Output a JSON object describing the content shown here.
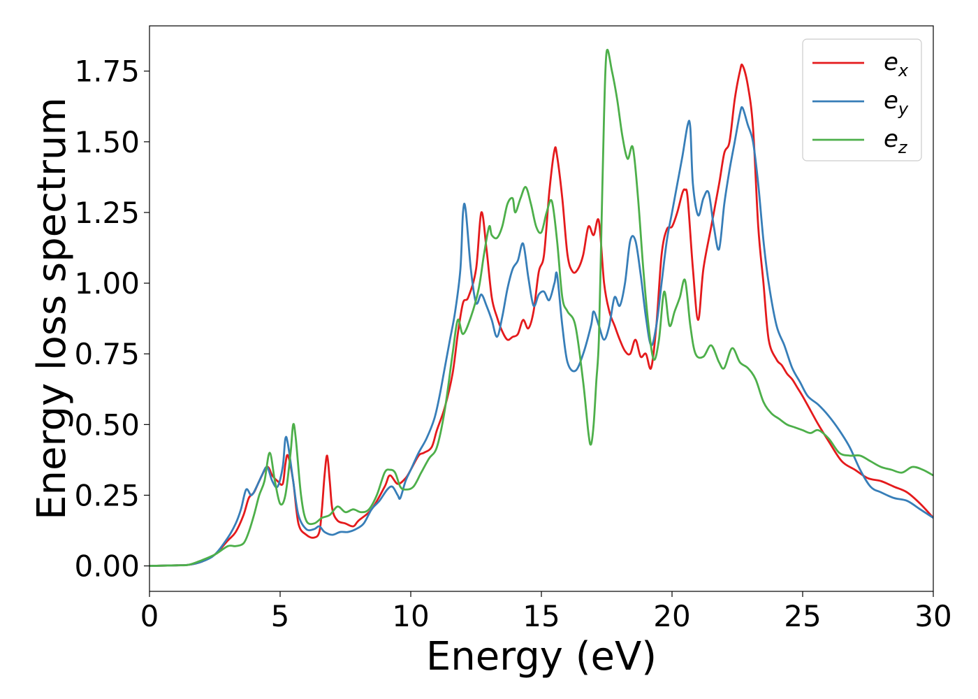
{
  "chart_data": {
    "type": "line",
    "title": "",
    "xlabel": "Energy (eV)",
    "ylabel": "Energy loss spectrum",
    "xlim": [
      0,
      30
    ],
    "ylim": [
      -0.09,
      1.91
    ],
    "xticks": [
      0,
      5,
      10,
      15,
      20,
      25,
      30
    ],
    "xtick_labels": [
      "0",
      "5",
      "10",
      "15",
      "20",
      "25",
      "30"
    ],
    "yticks": [
      0,
      0.25,
      0.5,
      0.75,
      1.0,
      1.25,
      1.5,
      1.75
    ],
    "ytick_labels": [
      "0.00",
      "0.25",
      "0.50",
      "0.75",
      "1.00",
      "1.25",
      "1.50",
      "1.75"
    ],
    "grid": false,
    "legend_position": "top-right",
    "series": [
      {
        "name": "e_x",
        "label_base": "e",
        "label_sub": "x",
        "color": "#e41a1c",
        "x": [
          0,
          1,
          1.5,
          2,
          2.5,
          3,
          3.3,
          3.6,
          3.8,
          4.0,
          4.2,
          4.5,
          4.7,
          4.9,
          5.1,
          5.2,
          5.3,
          5.5,
          5.7,
          6.0,
          6.3,
          6.5,
          6.6,
          6.7,
          6.8,
          6.9,
          7.0,
          7.2,
          7.5,
          7.8,
          8.0,
          8.5,
          9.0,
          9.2,
          9.5,
          9.8,
          10,
          10.3,
          10.5,
          10.8,
          11.0,
          11.3,
          11.6,
          11.8,
          12.0,
          12.2,
          12.5,
          12.7,
          12.9,
          13.1,
          13.3,
          13.5,
          13.7,
          13.9,
          14.1,
          14.3,
          14.5,
          14.7,
          14.9,
          15.1,
          15.3,
          15.5,
          15.6,
          15.8,
          16.0,
          16.2,
          16.4,
          16.6,
          16.8,
          17.0,
          17.2,
          17.4,
          17.6,
          17.8,
          18.0,
          18.2,
          18.4,
          18.6,
          18.8,
          19.0,
          19.2,
          19.4,
          19.6,
          19.8,
          20.0,
          20.2,
          20.4,
          20.5,
          20.6,
          20.8,
          21.0,
          21.2,
          21.5,
          21.8,
          22.0,
          22.2,
          22.4,
          22.6,
          22.7,
          22.9,
          23.1,
          23.3,
          23.5,
          23.7,
          24.0,
          24.2,
          24.4,
          24.6,
          24.8,
          25.0,
          25.3,
          25.6,
          26.0,
          26.5,
          27.0,
          27.5,
          28.0,
          28.5,
          29.0,
          29.5,
          30.0
        ],
        "y": [
          0,
          0.002,
          0.004,
          0.015,
          0.04,
          0.09,
          0.12,
          0.18,
          0.24,
          0.26,
          0.3,
          0.35,
          0.32,
          0.3,
          0.29,
          0.36,
          0.39,
          0.3,
          0.15,
          0.11,
          0.1,
          0.12,
          0.2,
          0.32,
          0.39,
          0.3,
          0.2,
          0.16,
          0.15,
          0.14,
          0.16,
          0.2,
          0.28,
          0.32,
          0.29,
          0.31,
          0.34,
          0.39,
          0.4,
          0.42,
          0.48,
          0.56,
          0.68,
          0.82,
          0.93,
          0.95,
          1.05,
          1.25,
          1.12,
          0.95,
          0.88,
          0.83,
          0.8,
          0.81,
          0.82,
          0.87,
          0.84,
          0.9,
          1.04,
          1.1,
          1.32,
          1.47,
          1.45,
          1.3,
          1.1,
          1.04,
          1.05,
          1.1,
          1.2,
          1.17,
          1.22,
          1.0,
          0.9,
          0.85,
          0.8,
          0.76,
          0.75,
          0.8,
          0.74,
          0.75,
          0.7,
          0.85,
          1.1,
          1.19,
          1.2,
          1.25,
          1.32,
          1.33,
          1.3,
          1.05,
          0.87,
          1.05,
          1.2,
          1.35,
          1.46,
          1.5,
          1.65,
          1.75,
          1.77,
          1.7,
          1.55,
          1.2,
          1.0,
          0.8,
          0.73,
          0.71,
          0.68,
          0.66,
          0.63,
          0.6,
          0.55,
          0.5,
          0.44,
          0.37,
          0.34,
          0.31,
          0.3,
          0.28,
          0.26,
          0.22,
          0.17
        ]
      },
      {
        "name": "e_y",
        "label_base": "e",
        "label_sub": "y",
        "color": "#377eb8",
        "x": [
          0,
          1,
          1.5,
          2,
          2.5,
          3,
          3.3,
          3.5,
          3.7,
          3.9,
          4.1,
          4.3,
          4.5,
          4.7,
          4.9,
          5.1,
          5.2,
          5.3,
          5.5,
          5.7,
          6.0,
          6.3,
          6.5,
          6.7,
          7.0,
          7.3,
          7.6,
          7.9,
          8.2,
          8.5,
          8.8,
          9.1,
          9.3,
          9.5,
          9.6,
          9.8,
          10.0,
          10.3,
          10.6,
          10.9,
          11.1,
          11.3,
          11.5,
          11.7,
          11.9,
          12.0,
          12.1,
          12.3,
          12.5,
          12.7,
          12.9,
          13.1,
          13.3,
          13.5,
          13.7,
          13.9,
          14.1,
          14.3,
          14.5,
          14.7,
          14.9,
          15.1,
          15.3,
          15.5,
          15.6,
          15.8,
          16.0,
          16.3,
          16.6,
          16.9,
          17.0,
          17.2,
          17.4,
          17.6,
          17.8,
          18.0,
          18.2,
          18.4,
          18.6,
          18.8,
          19.0,
          19.2,
          19.4,
          19.6,
          19.8,
          20.0,
          20.2,
          20.4,
          20.6,
          20.7,
          20.8,
          21.0,
          21.2,
          21.4,
          21.6,
          21.8,
          22.0,
          22.2,
          22.4,
          22.6,
          22.7,
          22.9,
          23.1,
          23.3,
          23.5,
          23.7,
          24.0,
          24.3,
          24.6,
          24.9,
          25.2,
          25.6,
          26.0,
          26.4,
          26.8,
          27.2,
          27.6,
          28.0,
          28.5,
          29.0,
          29.5,
          30.0
        ],
        "y": [
          0,
          0.002,
          0.004,
          0.015,
          0.04,
          0.1,
          0.15,
          0.2,
          0.27,
          0.25,
          0.28,
          0.32,
          0.35,
          0.3,
          0.28,
          0.35,
          0.45,
          0.43,
          0.3,
          0.18,
          0.13,
          0.13,
          0.14,
          0.12,
          0.11,
          0.12,
          0.12,
          0.13,
          0.15,
          0.2,
          0.23,
          0.27,
          0.28,
          0.25,
          0.24,
          0.3,
          0.34,
          0.4,
          0.45,
          0.52,
          0.6,
          0.7,
          0.8,
          0.9,
          1.05,
          1.25,
          1.26,
          1.05,
          0.93,
          0.96,
          0.92,
          0.87,
          0.81,
          0.88,
          0.98,
          1.05,
          1.08,
          1.14,
          1.02,
          0.92,
          0.96,
          0.97,
          0.94,
          1.0,
          1.03,
          0.85,
          0.72,
          0.69,
          0.75,
          0.85,
          0.9,
          0.85,
          0.8,
          0.85,
          0.95,
          0.92,
          1.0,
          1.15,
          1.15,
          1.03,
          0.88,
          0.78,
          0.85,
          1.0,
          1.15,
          1.25,
          1.35,
          1.45,
          1.56,
          1.55,
          1.35,
          1.24,
          1.3,
          1.32,
          1.2,
          1.12,
          1.28,
          1.4,
          1.5,
          1.6,
          1.62,
          1.56,
          1.5,
          1.35,
          1.15,
          1.0,
          0.85,
          0.78,
          0.7,
          0.65,
          0.6,
          0.57,
          0.53,
          0.48,
          0.42,
          0.34,
          0.28,
          0.26,
          0.24,
          0.23,
          0.2,
          0.17
        ]
      },
      {
        "name": "e_z",
        "label_base": "e",
        "label_sub": "z",
        "color": "#4daf4a",
        "x": [
          0,
          1,
          1.5,
          2,
          2.5,
          3,
          3.3,
          3.6,
          3.8,
          4.0,
          4.2,
          4.4,
          4.6,
          4.8,
          5.0,
          5.2,
          5.4,
          5.5,
          5.6,
          5.8,
          6.0,
          6.3,
          6.6,
          6.9,
          7.2,
          7.5,
          7.8,
          8.1,
          8.4,
          8.7,
          9.0,
          9.2,
          9.4,
          9.6,
          9.8,
          10.1,
          10.4,
          10.7,
          11.0,
          11.3,
          11.6,
          11.8,
          12.0,
          12.3,
          12.6,
          12.8,
          13.0,
          13.1,
          13.3,
          13.5,
          13.7,
          13.9,
          14.0,
          14.2,
          14.4,
          14.6,
          14.8,
          15.0,
          15.2,
          15.4,
          15.6,
          15.8,
          16.0,
          16.3,
          16.6,
          16.8,
          16.9,
          17.0,
          17.1,
          17.2,
          17.3,
          17.4,
          17.5,
          17.7,
          17.9,
          18.1,
          18.3,
          18.5,
          18.7,
          18.9,
          19.1,
          19.3,
          19.5,
          19.7,
          19.9,
          20.1,
          20.3,
          20.5,
          20.7,
          20.9,
          21.2,
          21.5,
          21.8,
          22.0,
          22.3,
          22.6,
          22.9,
          23.2,
          23.5,
          23.8,
          24.1,
          24.4,
          24.7,
          25.0,
          25.3,
          25.6,
          26.0,
          26.4,
          26.8,
          27.2,
          27.6,
          28.0,
          28.4,
          28.8,
          29.2,
          29.6,
          30.0
        ],
        "y": [
          0,
          0.002,
          0.004,
          0.02,
          0.04,
          0.07,
          0.07,
          0.08,
          0.12,
          0.18,
          0.25,
          0.3,
          0.4,
          0.3,
          0.22,
          0.25,
          0.4,
          0.5,
          0.45,
          0.25,
          0.16,
          0.15,
          0.17,
          0.18,
          0.21,
          0.19,
          0.2,
          0.19,
          0.2,
          0.25,
          0.33,
          0.34,
          0.33,
          0.28,
          0.27,
          0.28,
          0.33,
          0.38,
          0.42,
          0.55,
          0.75,
          0.87,
          0.82,
          0.88,
          0.98,
          1.1,
          1.2,
          1.17,
          1.16,
          1.2,
          1.28,
          1.3,
          1.25,
          1.3,
          1.34,
          1.28,
          1.2,
          1.18,
          1.25,
          1.29,
          1.15,
          0.95,
          0.9,
          0.85,
          0.65,
          0.47,
          0.43,
          0.5,
          0.65,
          0.8,
          1.2,
          1.6,
          1.82,
          1.75,
          1.65,
          1.52,
          1.44,
          1.48,
          1.3,
          1.05,
          0.85,
          0.73,
          0.8,
          0.97,
          0.85,
          0.9,
          0.95,
          1.01,
          0.85,
          0.75,
          0.74,
          0.78,
          0.72,
          0.7,
          0.77,
          0.72,
          0.7,
          0.66,
          0.58,
          0.54,
          0.52,
          0.5,
          0.49,
          0.48,
          0.47,
          0.48,
          0.45,
          0.4,
          0.39,
          0.39,
          0.37,
          0.35,
          0.34,
          0.33,
          0.35,
          0.34,
          0.32
        ]
      }
    ]
  }
}
